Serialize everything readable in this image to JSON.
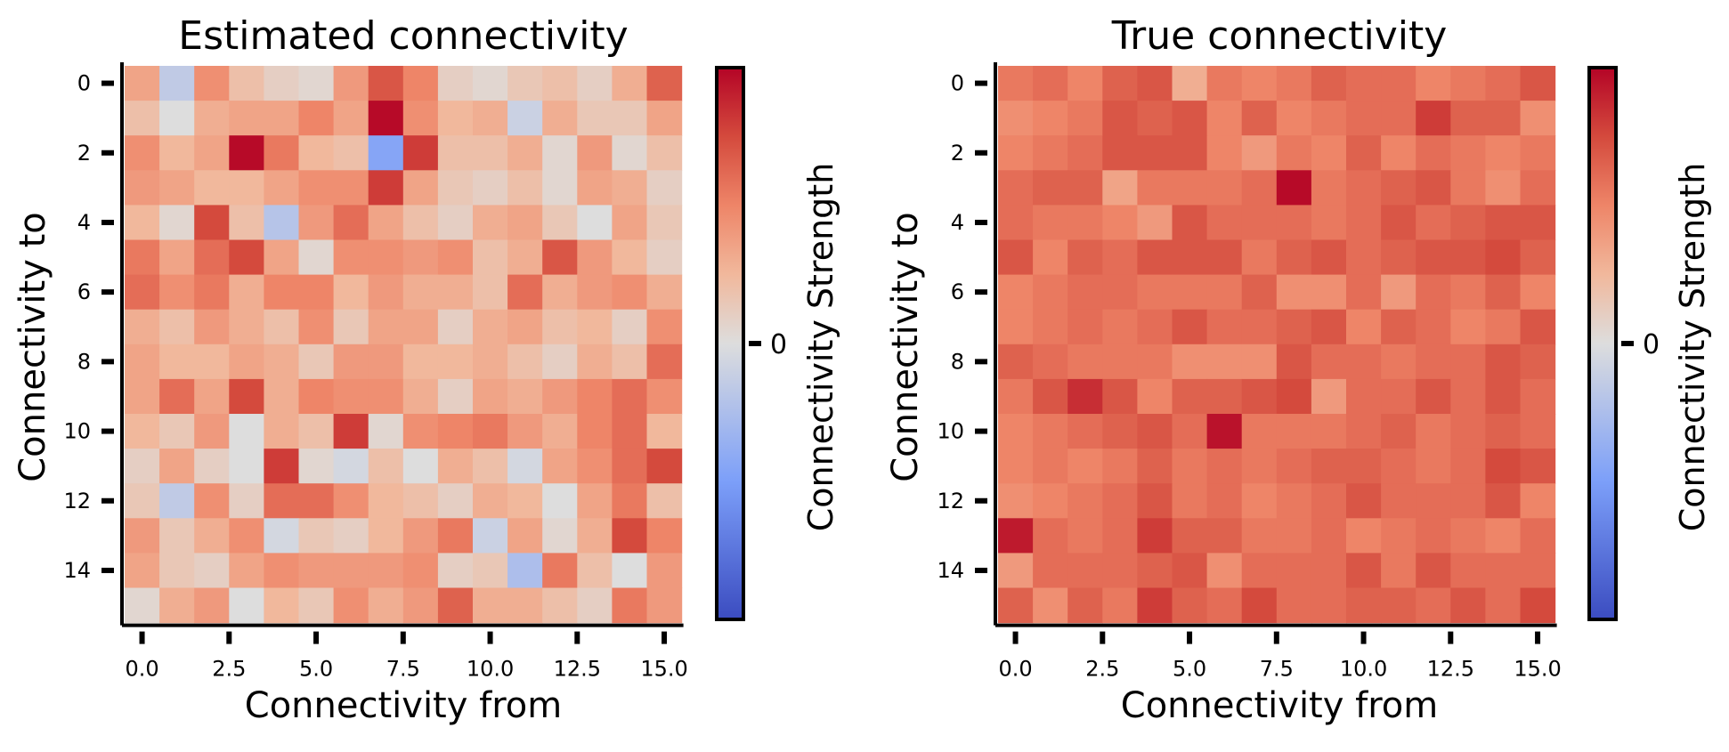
{
  "chart_data": [
    {
      "type": "heatmap",
      "title": "Estimated connectivity",
      "xlabel": "Connectivity from",
      "ylabel": "Connectivity to",
      "colorbar_label": "Connectivity Strength",
      "colorbar_ticks": [
        "0"
      ],
      "colormap": "coolwarm",
      "vmin": -1,
      "vmax": 1,
      "x_ticks": [
        "0.0",
        "2.5",
        "5.0",
        "7.5",
        "10.0",
        "12.5",
        "15.0"
      ],
      "x_tick_values": [
        0,
        2.5,
        5,
        7.5,
        10,
        12.5,
        15
      ],
      "y_ticks": [
        "0",
        "2",
        "4",
        "6",
        "8",
        "10",
        "12",
        "14"
      ],
      "y_tick_values": [
        0,
        2,
        4,
        6,
        8,
        10,
        12,
        14
      ],
      "values": [
        [
          0.35,
          -0.15,
          0.45,
          0.2,
          0.1,
          0.05,
          0.4,
          0.7,
          0.5,
          0.1,
          0.05,
          0.15,
          0.2,
          0.1,
          0.3,
          0.65
        ],
        [
          0.2,
          0.0,
          0.3,
          0.35,
          0.35,
          0.5,
          0.35,
          0.98,
          0.45,
          0.25,
          0.3,
          -0.1,
          0.3,
          0.15,
          0.15,
          0.35
        ],
        [
          0.45,
          0.25,
          0.35,
          0.98,
          0.55,
          0.25,
          0.2,
          -0.45,
          0.8,
          0.2,
          0.2,
          0.3,
          0.05,
          0.4,
          0.05,
          0.2
        ],
        [
          0.4,
          0.35,
          0.25,
          0.25,
          0.35,
          0.45,
          0.45,
          0.8,
          0.35,
          0.15,
          0.1,
          0.2,
          0.05,
          0.35,
          0.3,
          0.1
        ],
        [
          0.25,
          0.05,
          0.75,
          0.2,
          -0.2,
          0.4,
          0.6,
          0.35,
          0.2,
          0.1,
          0.3,
          0.35,
          0.15,
          0.0,
          0.35,
          0.15
        ],
        [
          0.55,
          0.35,
          0.6,
          0.75,
          0.35,
          0.05,
          0.45,
          0.45,
          0.4,
          0.45,
          0.2,
          0.3,
          0.7,
          0.4,
          0.25,
          0.1
        ],
        [
          0.6,
          0.45,
          0.55,
          0.3,
          0.5,
          0.5,
          0.25,
          0.4,
          0.3,
          0.3,
          0.2,
          0.6,
          0.3,
          0.4,
          0.45,
          0.3
        ],
        [
          0.3,
          0.2,
          0.4,
          0.3,
          0.2,
          0.45,
          0.15,
          0.35,
          0.35,
          0.1,
          0.3,
          0.35,
          0.2,
          0.25,
          0.1,
          0.45
        ],
        [
          0.35,
          0.25,
          0.25,
          0.35,
          0.3,
          0.15,
          0.4,
          0.4,
          0.25,
          0.25,
          0.3,
          0.2,
          0.1,
          0.3,
          0.2,
          0.6
        ],
        [
          0.35,
          0.6,
          0.35,
          0.75,
          0.3,
          0.5,
          0.45,
          0.45,
          0.3,
          0.1,
          0.35,
          0.3,
          0.4,
          0.5,
          0.6,
          0.45
        ],
        [
          0.25,
          0.15,
          0.4,
          0.0,
          0.3,
          0.2,
          0.8,
          0.05,
          0.45,
          0.5,
          0.55,
          0.4,
          0.3,
          0.5,
          0.6,
          0.25
        ],
        [
          0.1,
          0.35,
          0.1,
          0.0,
          0.8,
          0.05,
          -0.05,
          0.2,
          0.0,
          0.3,
          0.2,
          -0.05,
          0.35,
          0.45,
          0.6,
          0.75
        ],
        [
          0.15,
          -0.15,
          0.45,
          0.1,
          0.6,
          0.6,
          0.45,
          0.25,
          0.2,
          0.1,
          0.3,
          0.25,
          0.0,
          0.35,
          0.55,
          0.2
        ],
        [
          0.4,
          0.15,
          0.3,
          0.45,
          -0.05,
          0.15,
          0.1,
          0.25,
          0.4,
          0.55,
          -0.1,
          0.35,
          0.05,
          0.3,
          0.75,
          0.5
        ],
        [
          0.35,
          0.15,
          0.1,
          0.35,
          0.45,
          0.4,
          0.4,
          0.4,
          0.45,
          0.1,
          0.15,
          -0.25,
          0.55,
          0.2,
          0.0,
          0.4
        ],
        [
          0.05,
          0.3,
          0.4,
          0.0,
          0.25,
          0.15,
          0.45,
          0.3,
          0.4,
          0.65,
          0.3,
          0.3,
          0.2,
          0.1,
          0.55,
          0.4
        ]
      ]
    },
    {
      "type": "heatmap",
      "title": "True connectivity",
      "xlabel": "Connectivity from",
      "ylabel": "Connectivity to",
      "colorbar_label": "Connectivity Strength",
      "colorbar_ticks": [
        "0"
      ],
      "colormap": "coolwarm",
      "vmin": -1,
      "vmax": 1,
      "x_ticks": [
        "0.0",
        "2.5",
        "5.0",
        "7.5",
        "10.0",
        "12.5",
        "15.0"
      ],
      "x_tick_values": [
        0,
        2.5,
        5,
        7.5,
        10,
        12.5,
        15
      ],
      "y_ticks": [
        "0",
        "2",
        "4",
        "6",
        "8",
        "10",
        "12",
        "14"
      ],
      "y_tick_values": [
        0,
        2,
        4,
        6,
        8,
        10,
        12,
        14
      ],
      "values": [
        [
          0.55,
          0.6,
          0.5,
          0.65,
          0.7,
          0.3,
          0.55,
          0.5,
          0.55,
          0.65,
          0.6,
          0.6,
          0.5,
          0.55,
          0.6,
          0.7
        ],
        [
          0.45,
          0.5,
          0.55,
          0.7,
          0.65,
          0.7,
          0.5,
          0.65,
          0.5,
          0.55,
          0.6,
          0.6,
          0.8,
          0.65,
          0.65,
          0.45
        ],
        [
          0.5,
          0.55,
          0.6,
          0.7,
          0.7,
          0.7,
          0.5,
          0.4,
          0.55,
          0.5,
          0.65,
          0.5,
          0.6,
          0.55,
          0.5,
          0.55
        ],
        [
          0.6,
          0.65,
          0.65,
          0.35,
          0.55,
          0.55,
          0.55,
          0.6,
          0.98,
          0.55,
          0.6,
          0.65,
          0.7,
          0.55,
          0.45,
          0.6
        ],
        [
          0.6,
          0.55,
          0.55,
          0.5,
          0.4,
          0.7,
          0.6,
          0.6,
          0.6,
          0.55,
          0.6,
          0.7,
          0.6,
          0.65,
          0.7,
          0.7
        ],
        [
          0.7,
          0.5,
          0.65,
          0.6,
          0.7,
          0.7,
          0.7,
          0.55,
          0.65,
          0.7,
          0.6,
          0.65,
          0.7,
          0.7,
          0.75,
          0.65
        ],
        [
          0.5,
          0.55,
          0.6,
          0.6,
          0.55,
          0.55,
          0.55,
          0.65,
          0.45,
          0.45,
          0.6,
          0.4,
          0.6,
          0.55,
          0.65,
          0.5
        ],
        [
          0.5,
          0.55,
          0.6,
          0.55,
          0.6,
          0.7,
          0.6,
          0.6,
          0.65,
          0.7,
          0.5,
          0.65,
          0.6,
          0.5,
          0.55,
          0.7
        ],
        [
          0.65,
          0.6,
          0.55,
          0.55,
          0.55,
          0.45,
          0.45,
          0.45,
          0.7,
          0.6,
          0.6,
          0.55,
          0.6,
          0.6,
          0.7,
          0.65
        ],
        [
          0.55,
          0.7,
          0.85,
          0.7,
          0.5,
          0.65,
          0.65,
          0.7,
          0.75,
          0.4,
          0.6,
          0.6,
          0.7,
          0.6,
          0.7,
          0.6
        ],
        [
          0.5,
          0.55,
          0.6,
          0.65,
          0.7,
          0.6,
          0.95,
          0.55,
          0.55,
          0.55,
          0.6,
          0.65,
          0.55,
          0.6,
          0.65,
          0.6
        ],
        [
          0.5,
          0.55,
          0.5,
          0.55,
          0.65,
          0.55,
          0.6,
          0.55,
          0.6,
          0.65,
          0.65,
          0.6,
          0.55,
          0.6,
          0.75,
          0.7
        ],
        [
          0.45,
          0.5,
          0.55,
          0.6,
          0.7,
          0.55,
          0.6,
          0.5,
          0.55,
          0.6,
          0.7,
          0.6,
          0.6,
          0.6,
          0.7,
          0.5
        ],
        [
          0.92,
          0.6,
          0.55,
          0.6,
          0.8,
          0.65,
          0.65,
          0.55,
          0.55,
          0.6,
          0.5,
          0.55,
          0.6,
          0.55,
          0.5,
          0.6
        ],
        [
          0.4,
          0.6,
          0.6,
          0.6,
          0.65,
          0.7,
          0.45,
          0.6,
          0.6,
          0.6,
          0.7,
          0.55,
          0.7,
          0.6,
          0.6,
          0.6
        ],
        [
          0.65,
          0.45,
          0.65,
          0.55,
          0.8,
          0.65,
          0.6,
          0.75,
          0.6,
          0.6,
          0.65,
          0.65,
          0.6,
          0.7,
          0.6,
          0.75
        ]
      ]
    }
  ]
}
